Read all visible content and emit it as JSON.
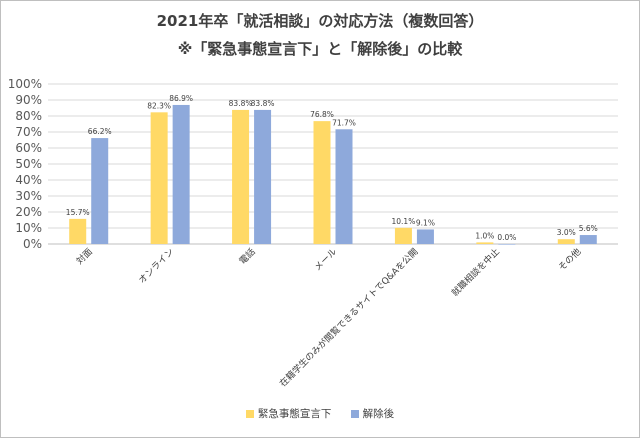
{
  "chart_data": {
    "type": "bar",
    "title": "2021年卒「就活相談」の対応方法（複数回答）",
    "subtitle": "※「緊急事態宣言下」と「解除後」の比較",
    "categories": [
      "対面",
      "オンライン",
      "電話",
      "メール",
      "在籍学生のみが閲覧できるサイトでQ&Aを公開",
      "就職相談を中止",
      "その他"
    ],
    "series": [
      {
        "name": "緊急事態宣言下",
        "color": "#FFD966",
        "values": [
          15.7,
          82.3,
          83.8,
          76.8,
          10.1,
          1.0,
          3.0
        ],
        "labels": [
          "15.7%",
          "82.3%",
          "83.8%",
          "76.8%",
          "10.1%",
          "1.0%",
          "3.0%"
        ]
      },
      {
        "name": "解除後",
        "color": "#8EA9DB",
        "values": [
          66.2,
          86.9,
          83.8,
          71.7,
          9.1,
          0.0,
          5.6
        ],
        "labels": [
          "66.2%",
          "86.9%",
          "83.8%",
          "71.7%",
          "9.1%",
          "0.0%",
          "5.6%"
        ]
      }
    ],
    "ylim": [
      0,
      100
    ],
    "yticks": [
      "0%",
      "10%",
      "20%",
      "30%",
      "40%",
      "50%",
      "60%",
      "70%",
      "80%",
      "90%",
      "100%"
    ],
    "grid": true,
    "legend": "bottom"
  }
}
